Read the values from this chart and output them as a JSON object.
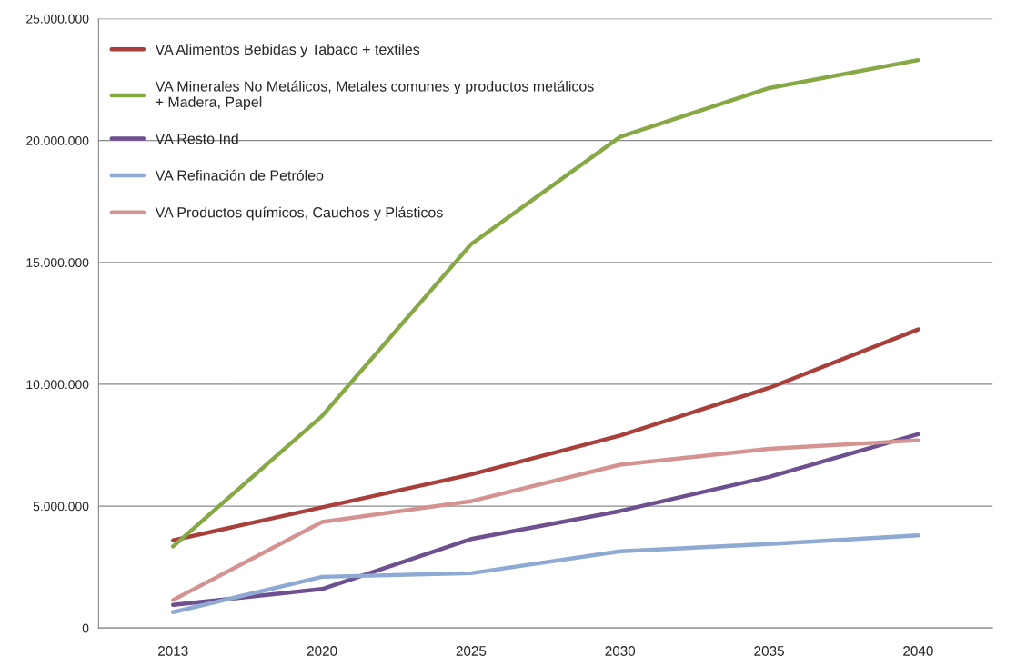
{
  "chart_data": {
    "type": "line",
    "categories": [
      "2013",
      "2020",
      "2025",
      "2030",
      "2035",
      "2040"
    ],
    "series": [
      {
        "name": "VA Alimentos Bebidas y Tabaco + textiles",
        "color": "#a93f3a",
        "values": [
          3600000,
          4950000,
          6300000,
          7900000,
          9850000,
          12250000
        ]
      },
      {
        "name": "VA Minerales No Metálicos, Metales comunes y productos metálicos\n+ Madera, Papel",
        "color": "#86a845",
        "values": [
          3350000,
          8700000,
          15750000,
          20150000,
          22150000,
          23300000
        ]
      },
      {
        "name": "VA Resto Ind",
        "color": "#6e4f8f",
        "values": [
          950000,
          1600000,
          3650000,
          4800000,
          6200000,
          7950000
        ]
      },
      {
        "name": "VA Refinación de Petróleo",
        "color": "#8ea9d3",
        "values": [
          650000,
          2100000,
          2250000,
          3150000,
          3450000,
          3800000
        ]
      },
      {
        "name": "VA Productos químicos, Cauchos y Plásticos",
        "color": "#d49391",
        "values": [
          1150000,
          4350000,
          5200000,
          6700000,
          7350000,
          7700000
        ]
      }
    ],
    "ylim": [
      0,
      25000000
    ],
    "yticks": [
      {
        "value": 0,
        "label": "0"
      },
      {
        "value": 5000000,
        "label": "5.000.000"
      },
      {
        "value": 10000000,
        "label": "10.000.000"
      },
      {
        "value": 15000000,
        "label": "15.000.000"
      },
      {
        "value": 20000000,
        "label": "20.000.000"
      },
      {
        "value": 25000000,
        "label": "25.000.000"
      }
    ],
    "grid": "y",
    "legend": "top left",
    "marker": "none",
    "line_style": "solid"
  }
}
